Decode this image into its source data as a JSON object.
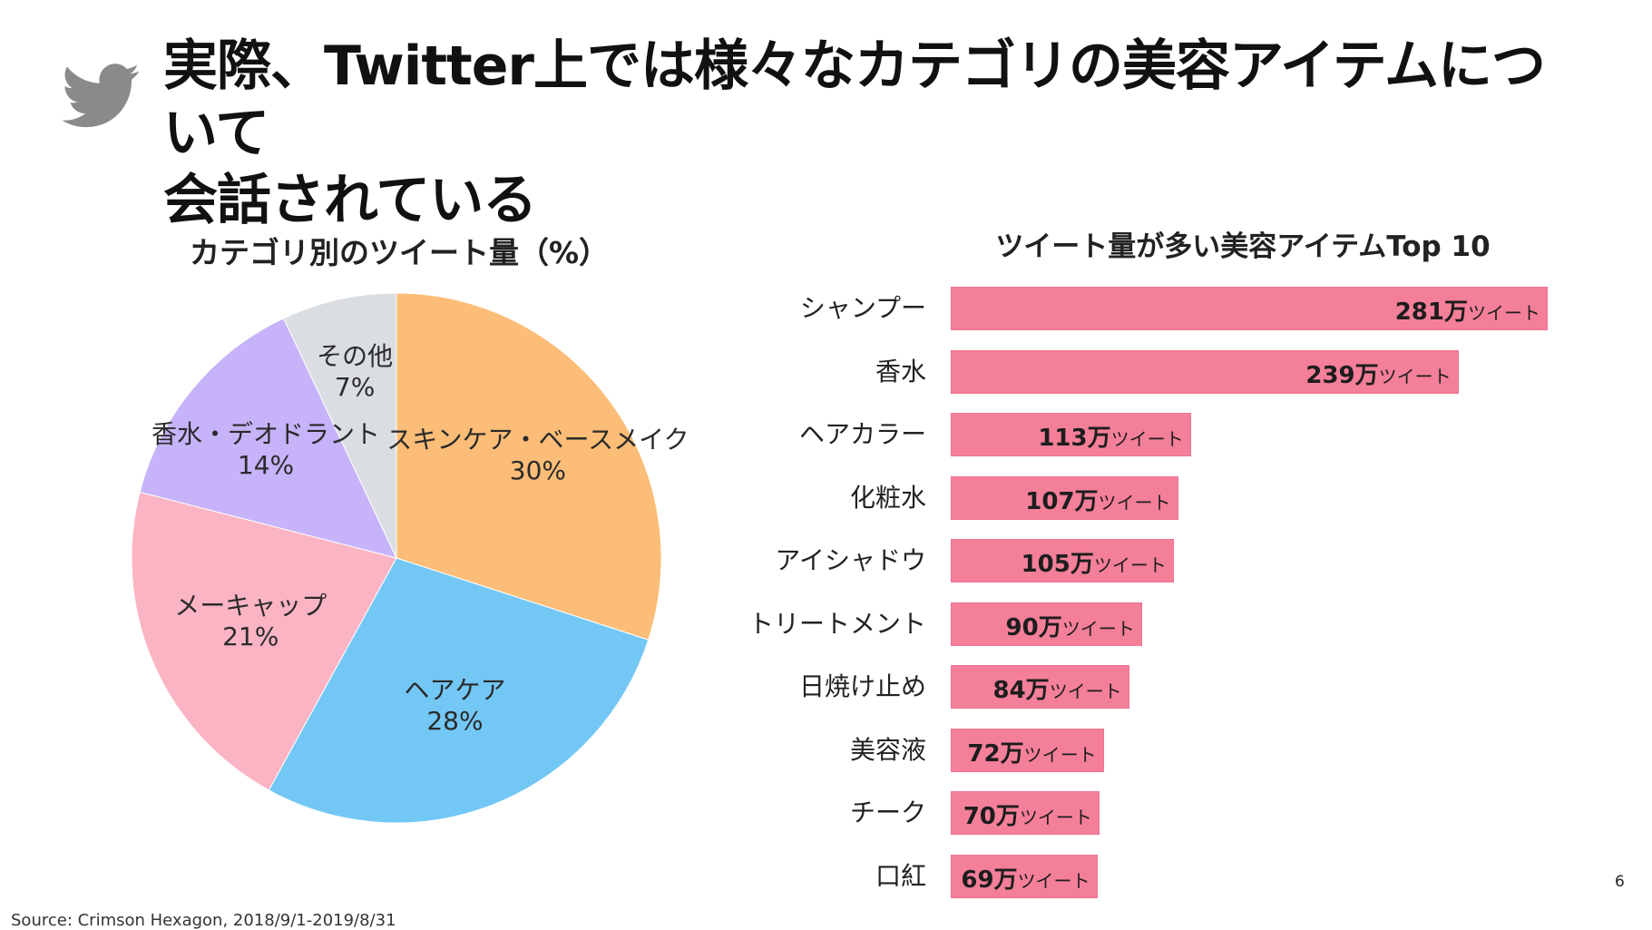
{
  "title": {
    "line1": "実際、Twitter上では様々なカテゴリの美容アイテムについて",
    "line2": "会話されている"
  },
  "colors": {
    "accent_bar": "#f47f99",
    "logo": "#8a8a8a"
  },
  "chart_data": [
    {
      "type": "pie",
      "title": "カテゴリ別のツイート量（%）",
      "slices": [
        {
          "label": "スキンケア・ベースメイク",
          "percent_label": "30%",
          "value": 30,
          "color": "#fbbd77"
        },
        {
          "label": "ヘアケア",
          "percent_label": "28%",
          "value": 28,
          "color": "#73c7f5"
        },
        {
          "label": "メーキャップ",
          "percent_label": "21%",
          "value": 21,
          "color": "#fbb4c3"
        },
        {
          "label": "香水・デオドラント",
          "percent_label": "14%",
          "value": 14,
          "color": "#c6b3f9"
        },
        {
          "label": "その他",
          "percent_label": "7%",
          "value": 7,
          "color": "#dadde1"
        }
      ]
    },
    {
      "type": "bar",
      "orientation": "horizontal",
      "title": "ツイート量が多い美容アイテムTop 10",
      "categories": [
        "シャンプー",
        "香水",
        "ヘアカラー",
        "化粧水",
        "アイシャドウ",
        "トリートメント",
        "日焼け止め",
        "美容液",
        "チーク",
        "口紅"
      ],
      "values": [
        281,
        239,
        113,
        107,
        105,
        90,
        84,
        72,
        70,
        69
      ],
      "value_labels": [
        "281万",
        "239万",
        "113万",
        "107万",
        "105万",
        "90万",
        "84万",
        "72万",
        "70万",
        "69万"
      ],
      "unit_label": "ツイート",
      "xlim": [
        0,
        281
      ]
    }
  ],
  "page_number": "6",
  "source": "Source: Crimson Hexagon, 2018/9/1-2019/8/31"
}
